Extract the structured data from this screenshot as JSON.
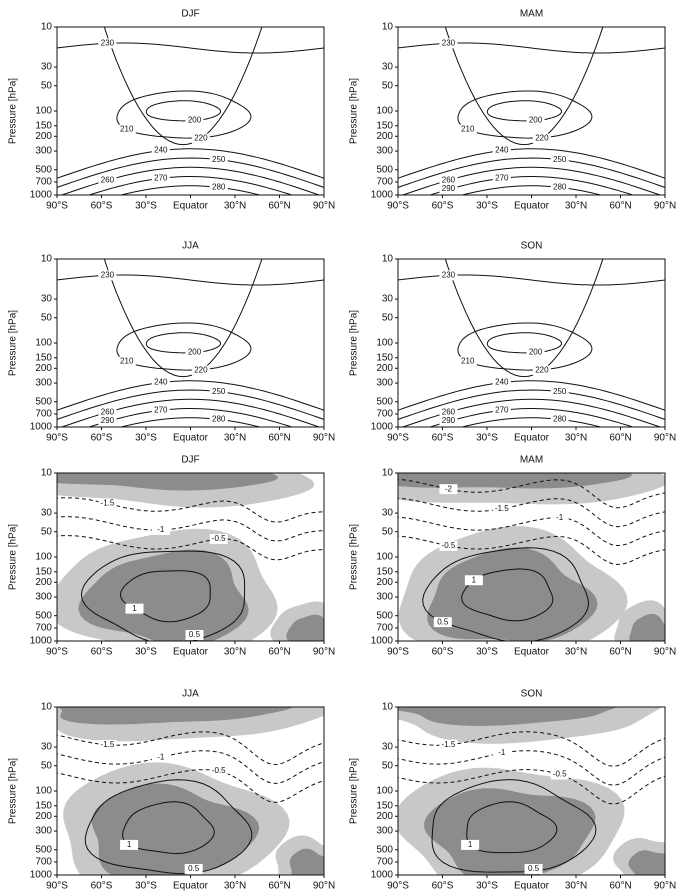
{
  "chart_data": [
    {
      "type": "contour",
      "title": "DJF",
      "shading": false,
      "levels": [
        200,
        210,
        220,
        230,
        240,
        250,
        260,
        270,
        280
      ],
      "xlim": [
        -90,
        90
      ],
      "xticks": [
        {
          "value": -90,
          "label": "90°S"
        },
        {
          "value": -60,
          "label": "60°S"
        },
        {
          "value": -30,
          "label": "30°S"
        },
        {
          "value": 0,
          "label": "Equator"
        },
        {
          "value": 30,
          "label": "30°N"
        },
        {
          "value": 60,
          "label": "60°N"
        },
        {
          "value": 90,
          "label": "90°N"
        }
      ],
      "ylim": [
        1000,
        10
      ],
      "yscale": "log",
      "yticks": [
        10,
        30,
        50,
        100,
        150,
        200,
        300,
        500,
        700,
        1000
      ],
      "y_label": "Pressure [hPa]"
    },
    {
      "type": "contour",
      "title": "MAM",
      "shading": false,
      "levels": [
        200,
        210,
        220,
        230,
        240,
        250,
        260,
        270,
        280,
        290
      ],
      "xlim": [
        -90,
        90
      ],
      "xticks": [
        {
          "value": -90,
          "label": "90°S"
        },
        {
          "value": -60,
          "label": "60°S"
        },
        {
          "value": -30,
          "label": "30°S"
        },
        {
          "value": 0,
          "label": "Equator"
        },
        {
          "value": 30,
          "label": "30°N"
        },
        {
          "value": 60,
          "label": "60°N"
        },
        {
          "value": 90,
          "label": "90°N"
        }
      ],
      "ylim": [
        1000,
        10
      ],
      "yscale": "log",
      "yticks": [
        10,
        30,
        50,
        100,
        150,
        200,
        300,
        500,
        700,
        1000
      ],
      "y_label": "Pressure [hPa]"
    },
    {
      "type": "contour",
      "title": "JJA",
      "shading": false,
      "levels": [
        200,
        210,
        220,
        230,
        240,
        250,
        260,
        270,
        280,
        290
      ],
      "xlim": [
        -90,
        90
      ],
      "xticks": [
        {
          "value": -90,
          "label": "90°S"
        },
        {
          "value": -60,
          "label": "60°S"
        },
        {
          "value": -30,
          "label": "30°S"
        },
        {
          "value": 0,
          "label": "Equator"
        },
        {
          "value": 30,
          "label": "30°N"
        },
        {
          "value": 60,
          "label": "60°N"
        },
        {
          "value": 90,
          "label": "90°N"
        }
      ],
      "ylim": [
        1000,
        10
      ],
      "yscale": "log",
      "yticks": [
        10,
        30,
        50,
        100,
        150,
        200,
        300,
        500,
        700,
        1000
      ],
      "y_label": "Pressure [hPa]"
    },
    {
      "type": "contour",
      "title": "SON",
      "shading": false,
      "levels": [
        200,
        210,
        220,
        230,
        240,
        250,
        260,
        270,
        280,
        290
      ],
      "xlim": [
        -90,
        90
      ],
      "xticks": [
        {
          "value": -90,
          "label": "90°S"
        },
        {
          "value": -60,
          "label": "60°S"
        },
        {
          "value": -30,
          "label": "30°S"
        },
        {
          "value": 0,
          "label": "Equator"
        },
        {
          "value": 30,
          "label": "30°N"
        },
        {
          "value": 60,
          "label": "60°N"
        },
        {
          "value": 90,
          "label": "90°N"
        }
      ],
      "ylim": [
        1000,
        10
      ],
      "yscale": "log",
      "yticks": [
        10,
        30,
        50,
        100,
        150,
        200,
        300,
        500,
        700,
        1000
      ],
      "y_label": "Pressure [hPa]"
    },
    {
      "type": "contour",
      "title": "DJF",
      "shading": true,
      "levels": [
        -1.5,
        -1,
        -0.5,
        0.5,
        1
      ],
      "xlim": [
        -90,
        90
      ],
      "xticks": [
        {
          "value": -90,
          "label": "90°S"
        },
        {
          "value": -60,
          "label": "60°S"
        },
        {
          "value": -30,
          "label": "30°S"
        },
        {
          "value": 0,
          "label": "Equator"
        },
        {
          "value": 30,
          "label": "30°N"
        },
        {
          "value": 60,
          "label": "60°N"
        },
        {
          "value": 90,
          "label": "90°N"
        }
      ],
      "ylim": [
        1000,
        10
      ],
      "yscale": "log",
      "yticks": [
        10,
        30,
        50,
        100,
        150,
        200,
        300,
        500,
        700,
        1000
      ],
      "y_label": "Pressure [hPa]"
    },
    {
      "type": "contour",
      "title": "MAM",
      "shading": true,
      "levels": [
        -2,
        -1.5,
        -1,
        -0.5,
        0.5,
        1
      ],
      "xlim": [
        -90,
        90
      ],
      "xticks": [
        {
          "value": -90,
          "label": "90°S"
        },
        {
          "value": -60,
          "label": "60°S"
        },
        {
          "value": -30,
          "label": "30°S"
        },
        {
          "value": 0,
          "label": "Equator"
        },
        {
          "value": 30,
          "label": "30°N"
        },
        {
          "value": 60,
          "label": "60°N"
        },
        {
          "value": 90,
          "label": "90°N"
        }
      ],
      "ylim": [
        1000,
        10
      ],
      "yscale": "log",
      "yticks": [
        10,
        30,
        50,
        100,
        150,
        200,
        300,
        500,
        700,
        1000
      ],
      "y_label": "Pressure [hPa]"
    },
    {
      "type": "contour",
      "title": "JJA",
      "shading": true,
      "levels": [
        -1.5,
        -1,
        -0.5,
        0.5,
        1
      ],
      "xlim": [
        -90,
        90
      ],
      "xticks": [
        {
          "value": -90,
          "label": "90°S"
        },
        {
          "value": -60,
          "label": "60°S"
        },
        {
          "value": -30,
          "label": "30°S"
        },
        {
          "value": 0,
          "label": "Equator"
        },
        {
          "value": 30,
          "label": "30°N"
        },
        {
          "value": 60,
          "label": "60°N"
        },
        {
          "value": 90,
          "label": "90°N"
        }
      ],
      "ylim": [
        1000,
        10
      ],
      "yscale": "log",
      "yticks": [
        10,
        30,
        50,
        100,
        150,
        200,
        300,
        500,
        700,
        1000
      ],
      "y_label": "Pressure [hPa]"
    },
    {
      "type": "contour",
      "title": "SON",
      "shading": true,
      "levels": [
        -1.5,
        -1,
        -0.5,
        0.5,
        1
      ],
      "xlim": [
        -90,
        90
      ],
      "xticks": [
        {
          "value": -90,
          "label": "90°S"
        },
        {
          "value": -60,
          "label": "60°S"
        },
        {
          "value": -30,
          "label": "30°S"
        },
        {
          "value": 0,
          "label": "Equator"
        },
        {
          "value": 30,
          "label": "30°N"
        },
        {
          "value": 60,
          "label": "60°N"
        },
        {
          "value": 90,
          "label": "90°N"
        }
      ],
      "ylim": [
        1000,
        10
      ],
      "yscale": "log",
      "yticks": [
        10,
        30,
        50,
        100,
        150,
        200,
        300,
        500,
        700,
        1000
      ],
      "y_label": "Pressure [hPa]"
    }
  ]
}
